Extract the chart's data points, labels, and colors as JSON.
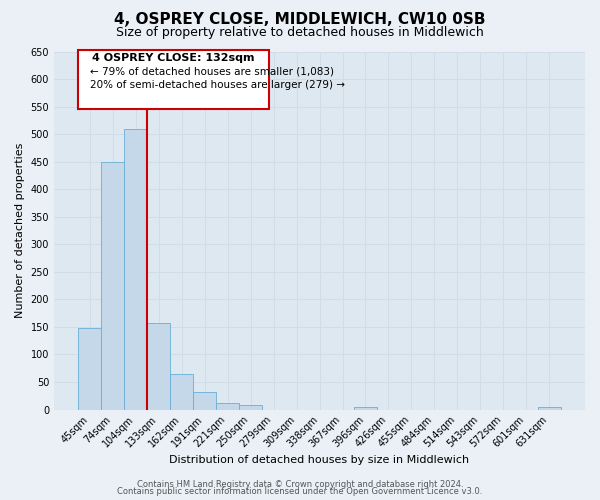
{
  "title": "4, OSPREY CLOSE, MIDDLEWICH, CW10 0SB",
  "subtitle": "Size of property relative to detached houses in Middlewich",
  "bar_labels": [
    "45sqm",
    "74sqm",
    "104sqm",
    "133sqm",
    "162sqm",
    "191sqm",
    "221sqm",
    "250sqm",
    "279sqm",
    "309sqm",
    "338sqm",
    "367sqm",
    "396sqm",
    "426sqm",
    "455sqm",
    "484sqm",
    "514sqm",
    "543sqm",
    "572sqm",
    "601sqm",
    "631sqm"
  ],
  "bar_values": [
    148,
    450,
    510,
    158,
    65,
    32,
    12,
    8,
    0,
    0,
    0,
    0,
    5,
    0,
    0,
    0,
    0,
    0,
    0,
    0,
    5
  ],
  "bar_color": "#c5d8ea",
  "bar_edge_color": "#6aaed6",
  "ylim": [
    0,
    650
  ],
  "yticks": [
    0,
    50,
    100,
    150,
    200,
    250,
    300,
    350,
    400,
    450,
    500,
    550,
    600,
    650
  ],
  "ylabel": "Number of detached properties",
  "xlabel": "Distribution of detached houses by size in Middlewich",
  "marker_color": "#cc0000",
  "annotation_title": "4 OSPREY CLOSE: 132sqm",
  "annotation_line1": "← 79% of detached houses are smaller (1,083)",
  "annotation_line2": "20% of semi-detached houses are larger (279) →",
  "box_edge_color": "#cc0000",
  "footer1": "Contains HM Land Registry data © Crown copyright and database right 2024.",
  "footer2": "Contains public sector information licensed under the Open Government Licence v3.0.",
  "title_fontsize": 11,
  "subtitle_fontsize": 9,
  "axis_label_fontsize": 8,
  "tick_fontsize": 7,
  "annotation_title_fontsize": 8,
  "annotation_text_fontsize": 7.5,
  "footer_fontsize": 6,
  "bg_color": "#eaf0f6",
  "grid_color": "#d0dce8",
  "plot_bg_color": "#dde8f0"
}
